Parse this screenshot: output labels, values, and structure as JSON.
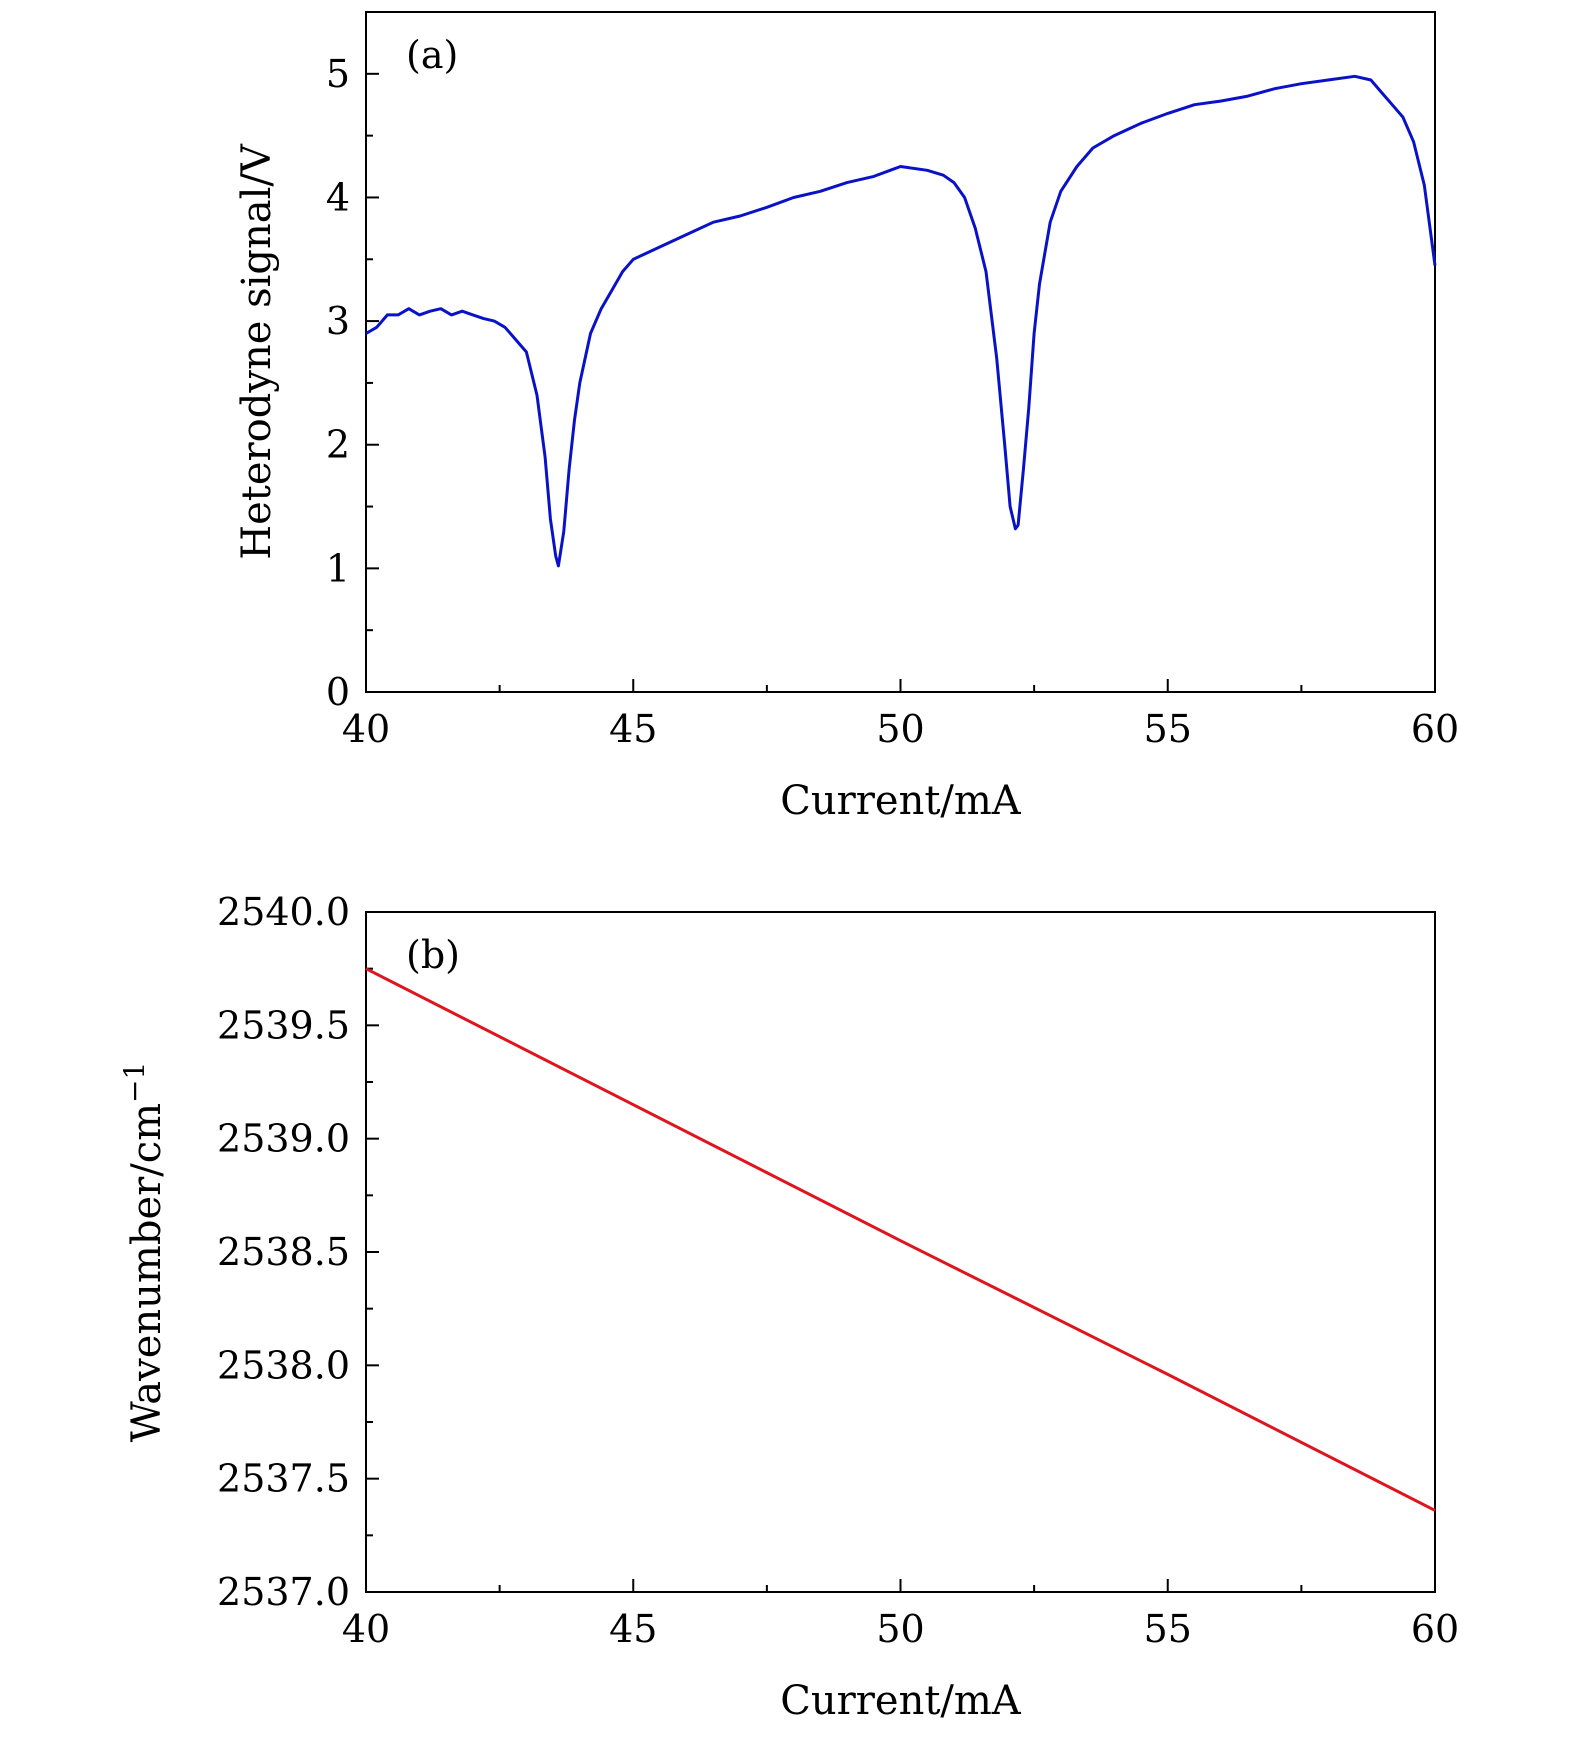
{
  "chart_data": [
    {
      "type": "line",
      "panel_label": "(a)",
      "xlabel": "Current/mA",
      "ylabel": "Heterodyne signal/V",
      "xlim": [
        40,
        60
      ],
      "ylim": [
        0,
        5.5
      ],
      "xticks": [
        40,
        45,
        50,
        55,
        60
      ],
      "xtick_labels": [
        "40",
        "45",
        "50",
        "55",
        "60"
      ],
      "yticks": [
        0,
        1,
        2,
        3,
        4,
        5
      ],
      "ytick_labels": [
        "0",
        "1",
        "2",
        "3",
        "4",
        "5"
      ],
      "grid": false,
      "series": [
        {
          "color": "#0a12c8",
          "x": [
            40.0,
            40.2,
            40.4,
            40.6,
            40.8,
            41.0,
            41.2,
            41.4,
            41.6,
            41.8,
            42.0,
            42.2,
            42.4,
            42.6,
            42.8,
            43.0,
            43.2,
            43.35,
            43.45,
            43.55,
            43.6,
            43.7,
            43.8,
            43.9,
            44.0,
            44.2,
            44.4,
            44.6,
            44.8,
            45.0,
            45.5,
            46.0,
            46.5,
            47.0,
            47.5,
            48.0,
            48.5,
            49.0,
            49.5,
            50.0,
            50.5,
            50.8,
            51.0,
            51.2,
            51.4,
            51.6,
            51.8,
            51.95,
            52.05,
            52.15,
            52.2,
            52.3,
            52.4,
            52.5,
            52.6,
            52.8,
            53.0,
            53.3,
            53.6,
            54.0,
            54.5,
            55.0,
            55.5,
            56.0,
            56.5,
            57.0,
            57.5,
            58.0,
            58.5,
            58.8,
            59.0,
            59.2,
            59.4,
            59.6,
            59.8,
            60.0
          ],
          "y": [
            2.9,
            2.95,
            3.05,
            3.05,
            3.1,
            3.05,
            3.08,
            3.1,
            3.05,
            3.08,
            3.05,
            3.02,
            3.0,
            2.95,
            2.85,
            2.75,
            2.4,
            1.9,
            1.4,
            1.1,
            1.02,
            1.3,
            1.8,
            2.2,
            2.5,
            2.9,
            3.1,
            3.25,
            3.4,
            3.5,
            3.6,
            3.7,
            3.8,
            3.85,
            3.92,
            4.0,
            4.05,
            4.12,
            4.17,
            4.25,
            4.22,
            4.18,
            4.12,
            4.0,
            3.75,
            3.4,
            2.7,
            2.0,
            1.5,
            1.32,
            1.35,
            1.8,
            2.3,
            2.9,
            3.3,
            3.8,
            4.05,
            4.25,
            4.4,
            4.5,
            4.6,
            4.68,
            4.75,
            4.78,
            4.82,
            4.88,
            4.92,
            4.95,
            4.98,
            4.95,
            4.85,
            4.75,
            4.65,
            4.45,
            4.1,
            3.45
          ]
        }
      ]
    },
    {
      "type": "line",
      "panel_label": "(b)",
      "xlabel": "Current/mA",
      "ylabel": "Wavenumber/cm",
      "ylabel_superscript": "−1",
      "xlim": [
        40,
        60
      ],
      "ylim": [
        2537.0,
        2540.0
      ],
      "xticks": [
        40,
        45,
        50,
        55,
        60
      ],
      "xtick_labels": [
        "40",
        "45",
        "50",
        "55",
        "60"
      ],
      "yticks": [
        2537.0,
        2537.5,
        2538.0,
        2538.5,
        2539.0,
        2539.5,
        2540.0
      ],
      "ytick_labels": [
        "2537.0",
        "2537.5",
        "2538.0",
        "2538.5",
        "2539.0",
        "2539.5",
        "2540.0"
      ],
      "grid": false,
      "series": [
        {
          "color": "#e0141e",
          "x": [
            40,
            45,
            50,
            55,
            60
          ],
          "y": [
            2539.75,
            2539.15,
            2538.55,
            2537.96,
            2537.36
          ]
        }
      ]
    }
  ]
}
